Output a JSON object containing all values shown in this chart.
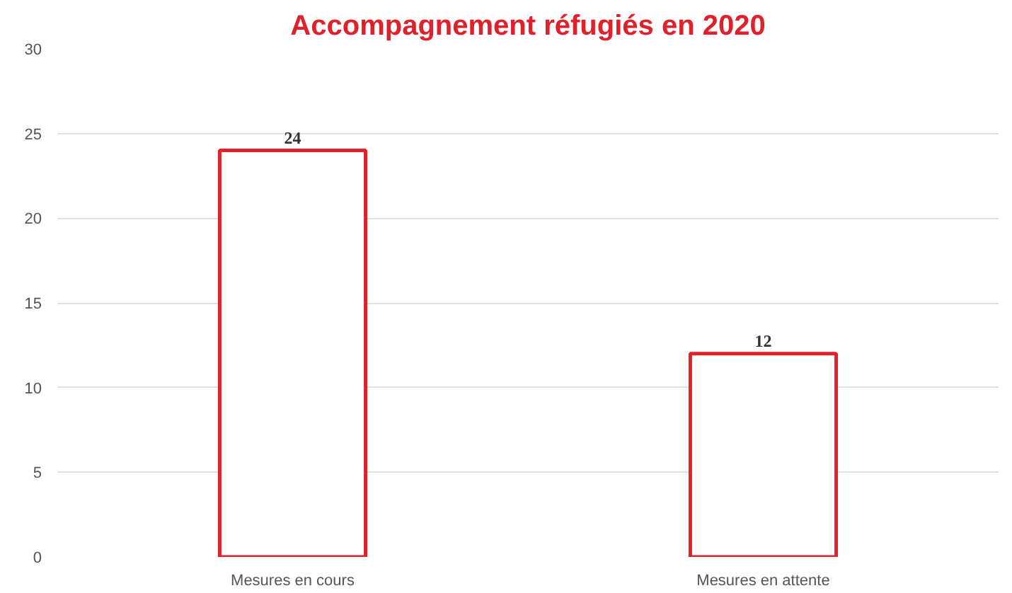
{
  "chart_data": {
    "type": "bar",
    "title": "Accompagnement réfugiés en 2020",
    "categories": [
      "Mesures en cours",
      "Mesures en attente"
    ],
    "values": [
      24,
      12
    ],
    "color": "#e0202a",
    "ylim": [
      0,
      30
    ],
    "yticks": [
      0,
      5,
      10,
      15,
      20,
      25,
      30
    ],
    "grid": "y",
    "data_labels": true
  }
}
